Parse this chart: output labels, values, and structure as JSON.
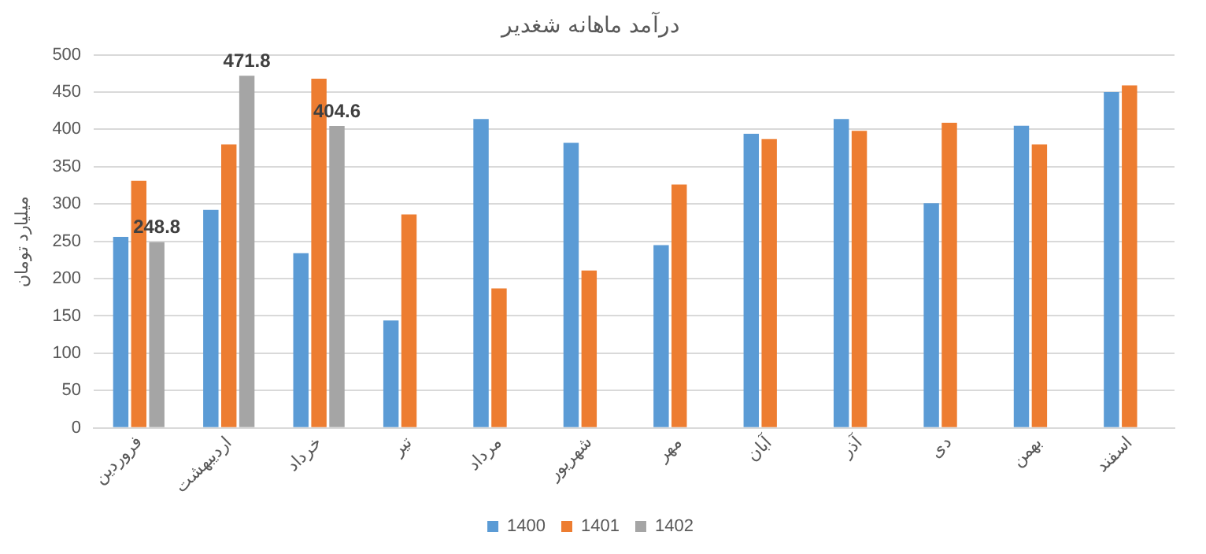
{
  "chart_data": {
    "type": "bar",
    "title": "درآمد ماهانه شغدیر",
    "ylabel": "میلیارد تومان",
    "categories": [
      "فروردین",
      "اردیبهشت",
      "خرداد",
      "تیر",
      "مرداد",
      "شهریور",
      "مهر",
      "آبان",
      "آذر",
      "دی",
      "بهمن",
      "اسفند"
    ],
    "series": [
      {
        "name": "1400",
        "color": "#5b9bd5",
        "values": [
          256,
          292,
          234,
          144,
          414,
          382,
          245,
          394,
          414,
          301,
          405,
          450
        ]
      },
      {
        "name": "1401",
        "color": "#ed7d31",
        "values": [
          331,
          380,
          468,
          286,
          187,
          211,
          326,
          387,
          398,
          409,
          380,
          459
        ]
      },
      {
        "name": "1402",
        "color": "#a5a5a5",
        "values": [
          248.8,
          471.8,
          404.6,
          null,
          null,
          null,
          null,
          null,
          null,
          null,
          null,
          null
        ],
        "value_labels": [
          "248.8",
          "471.8",
          "404.6",
          null,
          null,
          null,
          null,
          null,
          null,
          null,
          null,
          null
        ]
      }
    ],
    "ylim": [
      0,
      500
    ],
    "yticks": [
      0,
      50,
      100,
      150,
      200,
      250,
      300,
      350,
      400,
      450,
      500
    ],
    "grid": "y",
    "legend": "bottom"
  }
}
